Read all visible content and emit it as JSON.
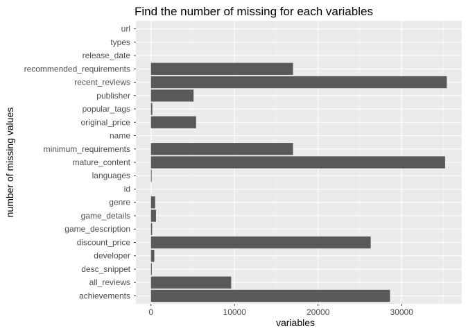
{
  "chart_data": {
    "type": "bar",
    "orientation": "horizontal",
    "title": "Find the number of missing for each variables",
    "xlabel": "variables",
    "ylabel": "number of missing values",
    "categories": [
      "url",
      "types",
      "release_date",
      "recommended_requirements",
      "recent_reviews",
      "publisher",
      "popular_tags",
      "original_price",
      "name",
      "minimum_requirements",
      "mature_content",
      "languages",
      "id",
      "genre",
      "game_details",
      "game_description",
      "discount_price",
      "developer",
      "desc_snippet",
      "all_reviews",
      "achievements"
    ],
    "values": [
      0,
      0,
      0,
      17000,
      35400,
      5100,
      160,
      5400,
      0,
      17000,
      35200,
      75,
      0,
      500,
      600,
      140,
      26300,
      400,
      100,
      9600,
      28600
    ],
    "xticks": [
      0,
      10000,
      20000,
      30000
    ],
    "xlim": [
      -1800,
      37200
    ],
    "grid": true,
    "colors": {
      "bar": "#595959",
      "panel": "#ebebeb",
      "grid_major": "#ffffff",
      "grid_minor": "#f5f5f5"
    }
  }
}
